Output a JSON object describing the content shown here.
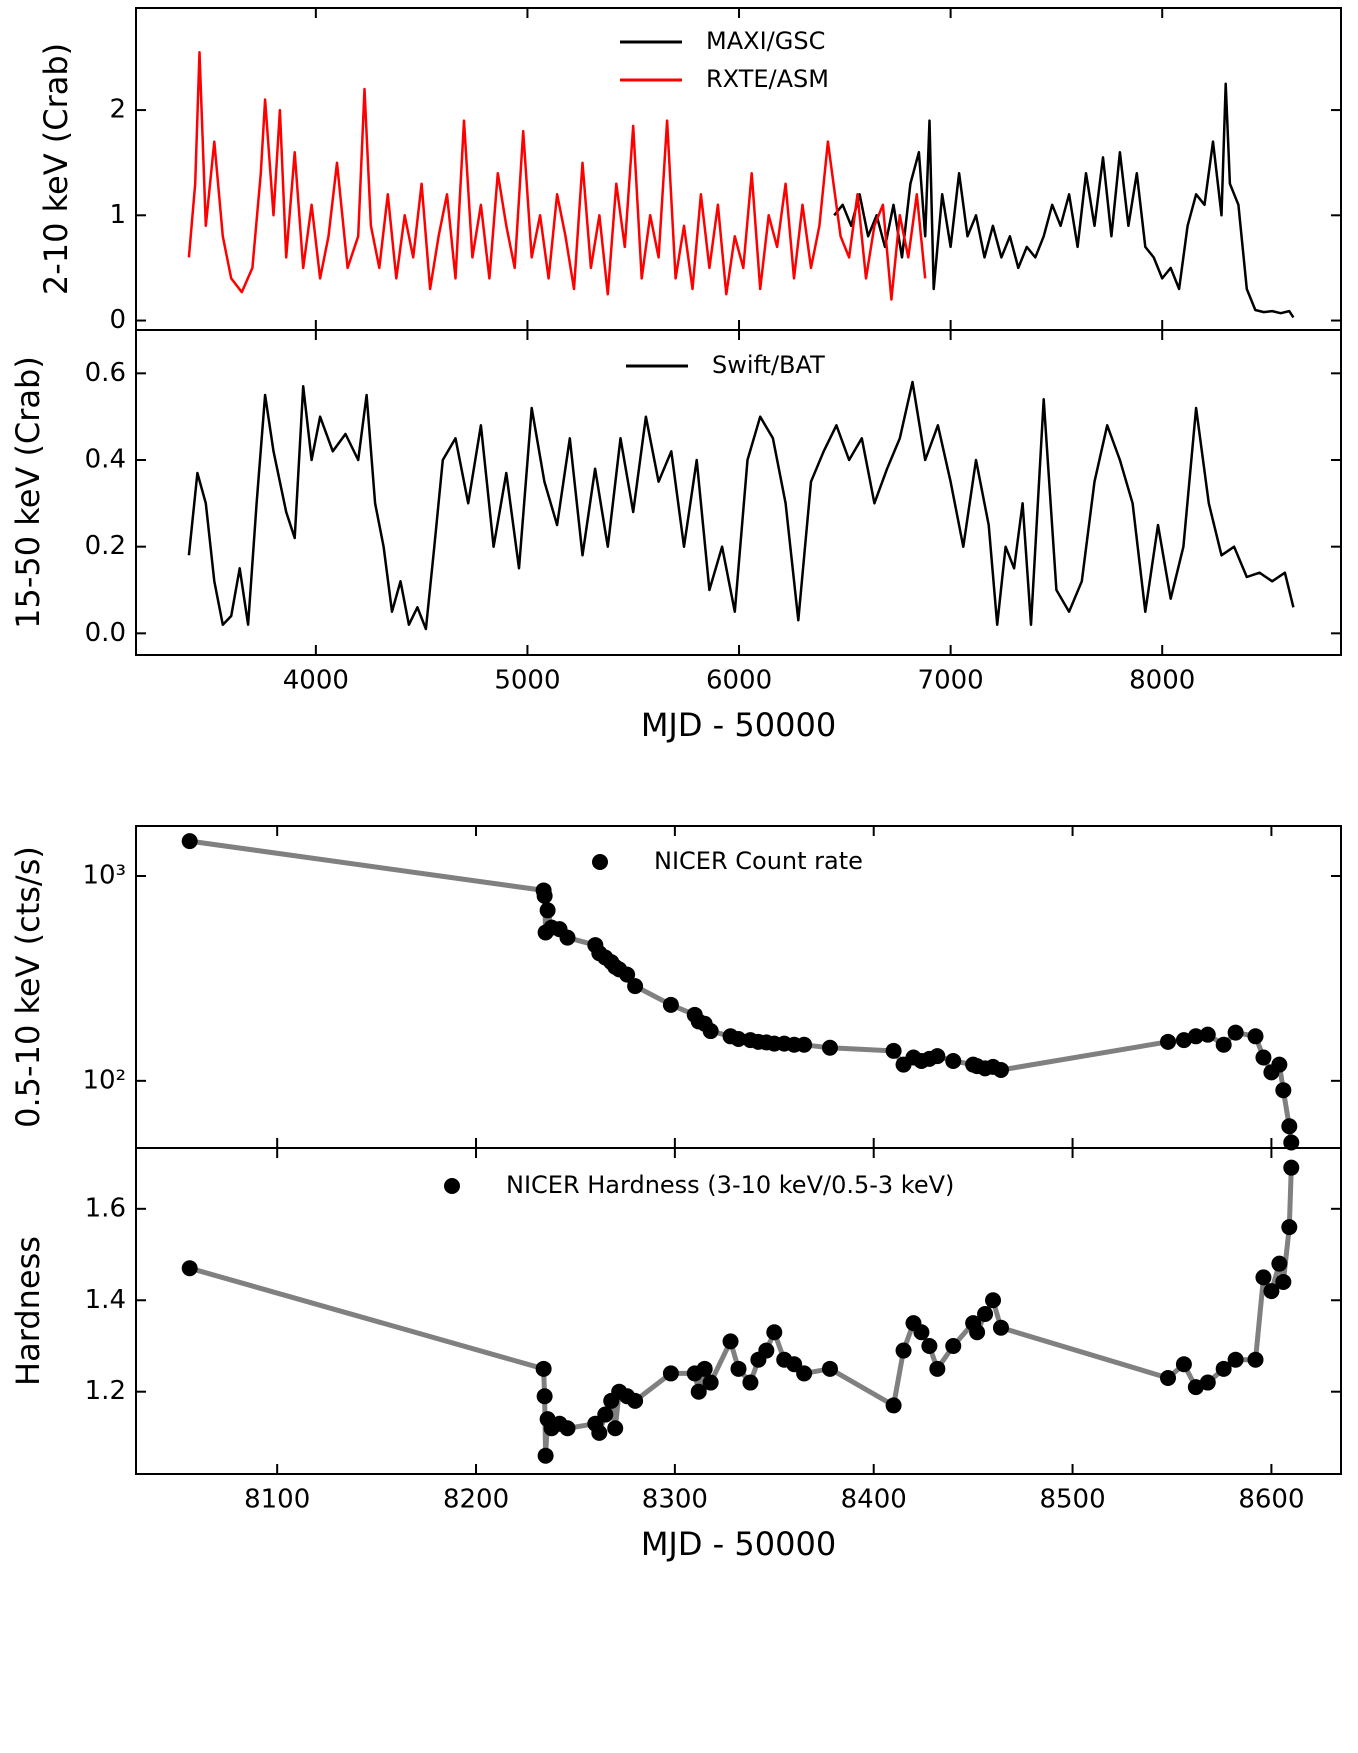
{
  "chart_data": [
    {
      "type": "line",
      "ylabel": "2-10 keV (Crab)",
      "legend": "upper center",
      "xlim": [
        3150,
        8845
      ],
      "ylim": [
        -0.09,
        2.97
      ],
      "yticks": [
        0,
        1,
        2
      ],
      "series": [
        {
          "name": "MAXI/GSC",
          "color": "#000000",
          "x": [
            6450,
            6490,
            6530,
            6570,
            6610,
            6650,
            6690,
            6730,
            6770,
            6810,
            6850,
            6880,
            6900,
            6920,
            6960,
            7000,
            7040,
            7080,
            7120,
            7160,
            7200,
            7240,
            7280,
            7320,
            7360,
            7400,
            7440,
            7480,
            7520,
            7560,
            7600,
            7640,
            7680,
            7720,
            7760,
            7800,
            7840,
            7880,
            7920,
            7960,
            8000,
            8040,
            8080,
            8120,
            8160,
            8200,
            8240,
            8280,
            8300,
            8320,
            8360,
            8400,
            8440,
            8480,
            8520,
            8560,
            8600,
            8620
          ],
          "values": [
            1.0,
            1.1,
            0.9,
            1.2,
            0.8,
            1.0,
            0.7,
            1.1,
            0.6,
            1.3,
            1.6,
            0.8,
            1.9,
            0.3,
            1.2,
            0.7,
            1.4,
            0.8,
            1.0,
            0.6,
            0.9,
            0.6,
            0.8,
            0.5,
            0.7,
            0.6,
            0.8,
            1.1,
            0.9,
            1.2,
            0.7,
            1.4,
            0.9,
            1.55,
            0.8,
            1.6,
            0.9,
            1.4,
            0.7,
            0.6,
            0.4,
            0.5,
            0.3,
            0.9,
            1.2,
            1.1,
            1.7,
            1.0,
            2.25,
            1.3,
            1.1,
            0.3,
            0.1,
            0.08,
            0.09,
            0.07,
            0.09,
            0.03
          ]
        },
        {
          "name": "RXTE/ASM",
          "color": "#ff0000",
          "x": [
            3400,
            3430,
            3450,
            3480,
            3520,
            3560,
            3600,
            3650,
            3700,
            3740,
            3760,
            3800,
            3830,
            3860,
            3900,
            3940,
            3980,
            4020,
            4060,
            4100,
            4150,
            4200,
            4230,
            4260,
            4300,
            4340,
            4380,
            4420,
            4460,
            4500,
            4540,
            4580,
            4620,
            4660,
            4700,
            4740,
            4780,
            4820,
            4860,
            4900,
            4940,
            4980,
            5020,
            5060,
            5100,
            5140,
            5180,
            5220,
            5260,
            5300,
            5340,
            5380,
            5420,
            5460,
            5500,
            5540,
            5580,
            5620,
            5660,
            5700,
            5740,
            5780,
            5820,
            5860,
            5900,
            5940,
            5980,
            6020,
            6060,
            6100,
            6140,
            6180,
            6220,
            6260,
            6300,
            6340,
            6380,
            6420,
            6440,
            6480,
            6520,
            6560,
            6600,
            6640,
            6680,
            6720,
            6760,
            6800,
            6840,
            6880
          ],
          "values": [
            0.6,
            1.3,
            2.55,
            0.9,
            1.7,
            0.8,
            0.4,
            0.27,
            0.5,
            1.4,
            2.1,
            1.0,
            2.0,
            0.6,
            1.6,
            0.5,
            1.1,
            0.4,
            0.8,
            1.5,
            0.5,
            0.8,
            2.2,
            0.9,
            0.5,
            1.2,
            0.4,
            1.0,
            0.6,
            1.3,
            0.3,
            0.8,
            1.2,
            0.4,
            1.9,
            0.6,
            1.1,
            0.4,
            1.4,
            0.9,
            0.5,
            1.8,
            0.6,
            1.0,
            0.4,
            1.2,
            0.8,
            0.3,
            1.5,
            0.5,
            1.0,
            0.25,
            1.3,
            0.7,
            1.85,
            0.4,
            1.0,
            0.6,
            1.9,
            0.4,
            0.9,
            0.3,
            1.2,
            0.5,
            1.1,
            0.25,
            0.8,
            0.5,
            1.4,
            0.3,
            1.0,
            0.7,
            1.3,
            0.4,
            1.1,
            0.5,
            0.9,
            1.7,
            1.4,
            0.8,
            0.6,
            1.2,
            0.4,
            0.9,
            1.1,
            0.2,
            1.0,
            0.6,
            1.2,
            0.4
          ]
        }
      ]
    },
    {
      "type": "line",
      "ylabel": "15-50 keV (Crab)",
      "xlabel": "MJD - 50000",
      "legend": "upper center",
      "xlim": [
        3150,
        8845
      ],
      "xticks": [
        4000,
        5000,
        6000,
        7000,
        8000
      ],
      "ylim": [
        -0.05,
        0.7
      ],
      "yticks": [
        {
          "value": 0,
          "label": "0.0"
        },
        0.2,
        0.4,
        0.6
      ],
      "series": [
        {
          "name": "Swift/BAT",
          "color": "#000000",
          "x": [
            3400,
            3440,
            3480,
            3520,
            3560,
            3600,
            3640,
            3680,
            3720,
            3760,
            3800,
            3860,
            3900,
            3940,
            3980,
            4020,
            4080,
            4140,
            4200,
            4240,
            4280,
            4320,
            4360,
            4400,
            4440,
            4480,
            4520,
            4560,
            4600,
            4660,
            4720,
            4780,
            4840,
            4900,
            4960,
            5020,
            5080,
            5140,
            5200,
            5260,
            5320,
            5380,
            5440,
            5500,
            5560,
            5620,
            5680,
            5740,
            5800,
            5860,
            5920,
            5980,
            6040,
            6100,
            6160,
            6220,
            6280,
            6340,
            6400,
            6460,
            6520,
            6580,
            6640,
            6700,
            6760,
            6820,
            6880,
            6940,
            7000,
            7060,
            7120,
            7180,
            7220,
            7260,
            7300,
            7340,
            7380,
            7440,
            7500,
            7560,
            7620,
            7680,
            7740,
            7800,
            7860,
            7920,
            7980,
            8040,
            8100,
            8160,
            8220,
            8280,
            8340,
            8400,
            8460,
            8520,
            8580,
            8620
          ],
          "values": [
            0.18,
            0.37,
            0.3,
            0.12,
            0.02,
            0.04,
            0.15,
            0.02,
            0.3,
            0.55,
            0.42,
            0.28,
            0.22,
            0.57,
            0.4,
            0.5,
            0.42,
            0.46,
            0.4,
            0.55,
            0.3,
            0.2,
            0.05,
            0.12,
            0.02,
            0.06,
            0.01,
            0.2,
            0.4,
            0.45,
            0.3,
            0.48,
            0.2,
            0.37,
            0.15,
            0.52,
            0.35,
            0.25,
            0.45,
            0.18,
            0.38,
            0.2,
            0.45,
            0.28,
            0.5,
            0.35,
            0.42,
            0.2,
            0.4,
            0.1,
            0.2,
            0.05,
            0.4,
            0.5,
            0.45,
            0.3,
            0.03,
            0.35,
            0.42,
            0.48,
            0.4,
            0.45,
            0.3,
            0.38,
            0.45,
            0.58,
            0.4,
            0.48,
            0.35,
            0.2,
            0.4,
            0.25,
            0.02,
            0.2,
            0.15,
            0.3,
            0.02,
            0.54,
            0.1,
            0.05,
            0.12,
            0.35,
            0.48,
            0.4,
            0.3,
            0.05,
            0.25,
            0.08,
            0.2,
            0.52,
            0.3,
            0.18,
            0.2,
            0.13,
            0.14,
            0.12,
            0.14,
            0.06
          ]
        }
      ]
    },
    {
      "type": "line",
      "ylabel": "0.5-10 keV (cts/s)",
      "legend": "upper center",
      "yscale": "log",
      "xlim": [
        8029,
        8635
      ],
      "ylim": [
        47,
        1754
      ],
      "yticks": [
        {
          "value": 100,
          "label": "10²"
        },
        {
          "value": 1000,
          "label": "10³"
        }
      ],
      "series": [
        {
          "name": "NICER Count rate",
          "color": "#808080",
          "marker": "o",
          "marker_color": "#000000",
          "x": [
            8056,
            8234,
            8234.5,
            8235,
            8236,
            8238,
            8242,
            8246,
            8260,
            8262,
            8265,
            8268,
            8270,
            8272,
            8276,
            8280,
            8298,
            8310,
            8312,
            8315,
            8318,
            8328,
            8332,
            8338,
            8342,
            8346,
            8350,
            8355,
            8360,
            8365,
            8378,
            8410,
            8415,
            8420,
            8424,
            8428,
            8432,
            8440,
            8450,
            8452,
            8456,
            8460,
            8464,
            8548,
            8556,
            8562,
            8568,
            8576,
            8582,
            8592,
            8596,
            8600,
            8604,
            8606,
            8609,
            8610
          ],
          "values": [
            1480,
            850,
            800,
            530,
            680,
            560,
            550,
            500,
            460,
            420,
            400,
            380,
            360,
            350,
            330,
            290,
            235,
            210,
            195,
            190,
            175,
            165,
            160,
            158,
            155,
            154,
            152,
            152,
            150,
            150,
            145,
            140,
            120,
            130,
            125,
            128,
            132,
            125,
            120,
            118,
            115,
            117,
            113,
            155,
            158,
            165,
            168,
            150,
            172,
            165,
            130,
            110,
            120,
            90,
            60,
            50
          ]
        }
      ]
    },
    {
      "type": "line",
      "ylabel": "Hardness",
      "xlabel": "MJD - 50000",
      "legend": "upper center",
      "xlim": [
        8029,
        8635
      ],
      "xticks": [
        8100,
        8200,
        8300,
        8400,
        8500,
        8600
      ],
      "ylim": [
        1.02,
        1.733
      ],
      "yticks": [
        1.2,
        1.4,
        1.6
      ],
      "series": [
        {
          "name": "NICER Hardness (3-10 keV/0.5-3 keV)",
          "color": "#808080",
          "marker": "o",
          "marker_color": "#000000",
          "x": [
            8056,
            8234,
            8234.5,
            8235,
            8236,
            8238,
            8242,
            8246,
            8260,
            8262,
            8265,
            8268,
            8270,
            8272,
            8276,
            8280,
            8298,
            8310,
            8312,
            8315,
            8318,
            8328,
            8332,
            8338,
            8342,
            8346,
            8350,
            8355,
            8360,
            8365,
            8378,
            8410,
            8415,
            8420,
            8424,
            8428,
            8432,
            8440,
            8450,
            8452,
            8456,
            8460,
            8464,
            8548,
            8556,
            8562,
            8568,
            8576,
            8582,
            8592,
            8596,
            8600,
            8604,
            8606,
            8609,
            8610
          ],
          "values": [
            1.47,
            1.25,
            1.19,
            1.06,
            1.14,
            1.12,
            1.13,
            1.12,
            1.13,
            1.11,
            1.15,
            1.18,
            1.12,
            1.2,
            1.19,
            1.18,
            1.24,
            1.24,
            1.2,
            1.25,
            1.22,
            1.31,
            1.25,
            1.22,
            1.27,
            1.29,
            1.33,
            1.27,
            1.26,
            1.24,
            1.25,
            1.17,
            1.29,
            1.35,
            1.33,
            1.3,
            1.25,
            1.3,
            1.35,
            1.33,
            1.37,
            1.4,
            1.34,
            1.23,
            1.26,
            1.21,
            1.22,
            1.25,
            1.27,
            1.27,
            1.45,
            1.42,
            1.48,
            1.44,
            1.56,
            1.69
          ]
        }
      ]
    }
  ]
}
